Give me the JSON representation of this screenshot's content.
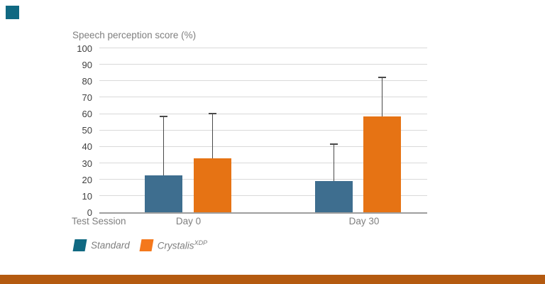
{
  "page": {
    "background": "#ffffff"
  },
  "decorations": {
    "corner_square_color": "#106982",
    "bottom_bar_color": "#b45a10"
  },
  "chart_data": {
    "type": "bar",
    "title": "Speech perception score (%)",
    "xlabel": "Test Session",
    "ylabel": "Speech perception score (%)",
    "categories": [
      "Day 0",
      "Day 30"
    ],
    "series": [
      {
        "name": "Standard",
        "name_superscript": "",
        "color": "#3e6e8f",
        "legend_color": "#106982",
        "values": [
          22.5,
          19
        ],
        "error_up": [
          36,
          22.5
        ]
      },
      {
        "name": "Crystalis",
        "name_superscript": "XDP",
        "color": "#e67314",
        "legend_color": "#f4781c",
        "values": [
          33,
          58.5
        ],
        "error_up": [
          27,
          23.5
        ]
      }
    ],
    "ylim": [
      0,
      100
    ],
    "ytick_step": 10,
    "grid": true,
    "error_bars": "upper",
    "legend_position": "bottom-left"
  }
}
